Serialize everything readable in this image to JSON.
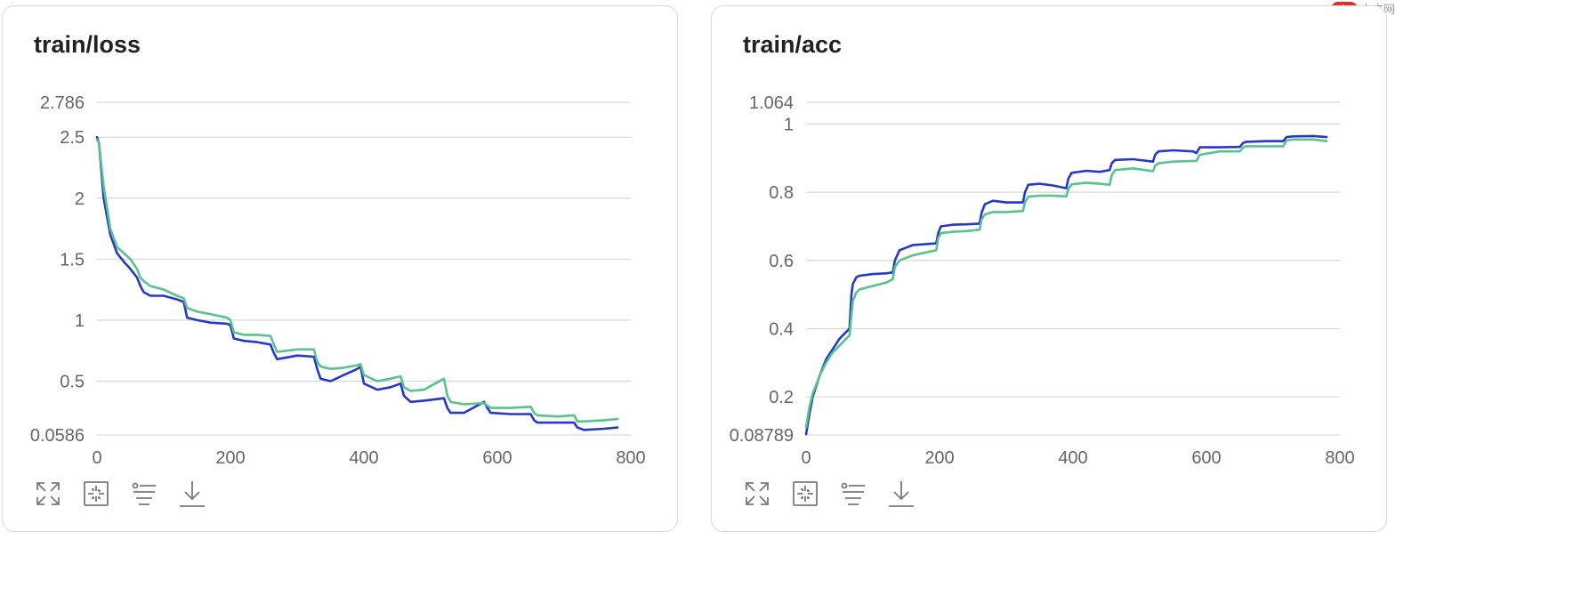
{
  "watermark": {
    "logo": "php",
    "text": "中文网"
  },
  "toolbar_icons": [
    "expand-icon",
    "fit-icon",
    "filter-icon",
    "download-icon"
  ],
  "colors": {
    "series_blue": "#2637cc",
    "series_green": "#58c48b"
  },
  "charts": {
    "loss": {
      "title": "train/loss"
    },
    "acc": {
      "title": "train/acc"
    }
  },
  "chart_data": [
    {
      "type": "line",
      "title": "train/loss",
      "xlabel": "",
      "ylabel": "",
      "xlim": [
        0,
        800
      ],
      "ylim": [
        0.0586,
        2.786
      ],
      "x_ticks": [
        0,
        200,
        400,
        600,
        800
      ],
      "x_tick_labels": [
        "0",
        "200",
        "400",
        "600",
        "800"
      ],
      "y_ticks": [
        0.0586,
        0.5,
        1,
        1.5,
        2,
        2.5,
        2.786
      ],
      "y_tick_labels": [
        "0.0586",
        "0.5",
        "1",
        "1.5",
        "2",
        "2.5",
        "2.786"
      ],
      "grid": true,
      "legend": "none",
      "series": [
        {
          "color": "#2637cc",
          "x": [
            0,
            3,
            10,
            20,
            30,
            40,
            50,
            60,
            65,
            70,
            80,
            100,
            120,
            130,
            135,
            150,
            170,
            195,
            200,
            205,
            220,
            240,
            260,
            265,
            270,
            300,
            325,
            330,
            335,
            350,
            370,
            390,
            395,
            400,
            420,
            440,
            455,
            460,
            470,
            490,
            520,
            525,
            530,
            550,
            580,
            585,
            590,
            620,
            650,
            655,
            660,
            690,
            715,
            720,
            730,
            760,
            780
          ],
          "y": [
            2.5,
            2.45,
            2.0,
            1.7,
            1.55,
            1.48,
            1.42,
            1.35,
            1.28,
            1.23,
            1.2,
            1.2,
            1.17,
            1.15,
            1.02,
            1.0,
            0.98,
            0.97,
            0.96,
            0.85,
            0.83,
            0.82,
            0.8,
            0.73,
            0.68,
            0.71,
            0.7,
            0.6,
            0.52,
            0.5,
            0.55,
            0.6,
            0.62,
            0.48,
            0.43,
            0.45,
            0.48,
            0.38,
            0.33,
            0.34,
            0.36,
            0.28,
            0.24,
            0.24,
            0.33,
            0.28,
            0.24,
            0.23,
            0.23,
            0.18,
            0.16,
            0.16,
            0.16,
            0.12,
            0.1,
            0.11,
            0.12
          ]
        },
        {
          "color": "#58c48b",
          "x": [
            0,
            3,
            10,
            20,
            30,
            40,
            50,
            60,
            65,
            70,
            80,
            100,
            120,
            130,
            135,
            150,
            170,
            195,
            200,
            205,
            220,
            240,
            260,
            265,
            270,
            300,
            325,
            330,
            335,
            350,
            370,
            390,
            395,
            400,
            420,
            440,
            455,
            460,
            470,
            490,
            520,
            525,
            530,
            550,
            580,
            585,
            590,
            620,
            650,
            655,
            660,
            690,
            715,
            720,
            730,
            760,
            780
          ],
          "y": [
            2.48,
            2.45,
            2.1,
            1.75,
            1.6,
            1.55,
            1.5,
            1.42,
            1.35,
            1.32,
            1.28,
            1.25,
            1.2,
            1.18,
            1.1,
            1.07,
            1.05,
            1.02,
            1.0,
            0.9,
            0.88,
            0.88,
            0.87,
            0.8,
            0.74,
            0.76,
            0.76,
            0.66,
            0.62,
            0.6,
            0.61,
            0.63,
            0.64,
            0.55,
            0.5,
            0.52,
            0.54,
            0.45,
            0.42,
            0.43,
            0.52,
            0.38,
            0.33,
            0.31,
            0.32,
            0.3,
            0.28,
            0.28,
            0.29,
            0.24,
            0.22,
            0.21,
            0.22,
            0.17,
            0.17,
            0.18,
            0.19
          ]
        }
      ]
    },
    {
      "type": "line",
      "title": "train/acc",
      "xlabel": "",
      "ylabel": "",
      "xlim": [
        0,
        800
      ],
      "ylim": [
        0.08789,
        1.064
      ],
      "x_ticks": [
        0,
        200,
        400,
        600,
        800
      ],
      "x_tick_labels": [
        "0",
        "200",
        "400",
        "600",
        "800"
      ],
      "y_ticks": [
        0.08789,
        0.2,
        0.4,
        0.6,
        0.8,
        1,
        1.064
      ],
      "y_tick_labels": [
        "0.08789",
        "0.2",
        "0.4",
        "0.6",
        "0.8",
        "1",
        "1.064"
      ],
      "grid": true,
      "legend": "none",
      "series": [
        {
          "color": "#2637cc",
          "x": [
            0,
            5,
            10,
            20,
            30,
            40,
            50,
            60,
            65,
            68,
            70,
            75,
            80,
            100,
            120,
            130,
            133,
            140,
            160,
            195,
            198,
            202,
            220,
            240,
            260,
            263,
            268,
            280,
            300,
            325,
            328,
            333,
            350,
            370,
            390,
            393,
            398,
            420,
            440,
            455,
            458,
            463,
            490,
            520,
            523,
            528,
            550,
            580,
            585,
            590,
            620,
            650,
            655,
            660,
            690,
            715,
            720,
            730,
            760,
            780
          ],
          "y": [
            0.09,
            0.15,
            0.2,
            0.26,
            0.31,
            0.34,
            0.37,
            0.39,
            0.4,
            0.5,
            0.53,
            0.55,
            0.555,
            0.56,
            0.562,
            0.565,
            0.6,
            0.63,
            0.645,
            0.65,
            0.68,
            0.7,
            0.705,
            0.706,
            0.708,
            0.74,
            0.765,
            0.775,
            0.77,
            0.77,
            0.8,
            0.822,
            0.825,
            0.82,
            0.812,
            0.84,
            0.857,
            0.863,
            0.86,
            0.865,
            0.885,
            0.895,
            0.897,
            0.89,
            0.91,
            0.92,
            0.923,
            0.92,
            0.915,
            0.932,
            0.932,
            0.933,
            0.945,
            0.948,
            0.95,
            0.95,
            0.962,
            0.964,
            0.965,
            0.962
          ]
        },
        {
          "color": "#58c48b",
          "x": [
            0,
            5,
            10,
            20,
            30,
            40,
            50,
            60,
            65,
            68,
            70,
            75,
            80,
            100,
            120,
            130,
            133,
            140,
            160,
            195,
            198,
            202,
            220,
            240,
            260,
            263,
            268,
            280,
            300,
            325,
            328,
            333,
            350,
            370,
            390,
            393,
            398,
            420,
            440,
            455,
            458,
            463,
            490,
            520,
            523,
            528,
            550,
            580,
            585,
            590,
            620,
            650,
            655,
            660,
            690,
            715,
            720,
            730,
            760,
            780
          ],
          "y": [
            0.11,
            0.17,
            0.21,
            0.26,
            0.3,
            0.33,
            0.35,
            0.37,
            0.38,
            0.44,
            0.48,
            0.505,
            0.515,
            0.525,
            0.535,
            0.545,
            0.58,
            0.6,
            0.615,
            0.63,
            0.665,
            0.68,
            0.684,
            0.686,
            0.69,
            0.72,
            0.735,
            0.742,
            0.742,
            0.745,
            0.77,
            0.787,
            0.79,
            0.79,
            0.788,
            0.81,
            0.823,
            0.828,
            0.825,
            0.822,
            0.85,
            0.865,
            0.87,
            0.862,
            0.878,
            0.885,
            0.89,
            0.892,
            0.892,
            0.91,
            0.92,
            0.92,
            0.932,
            0.935,
            0.935,
            0.935,
            0.952,
            0.955,
            0.955,
            0.95
          ]
        }
      ]
    }
  ]
}
